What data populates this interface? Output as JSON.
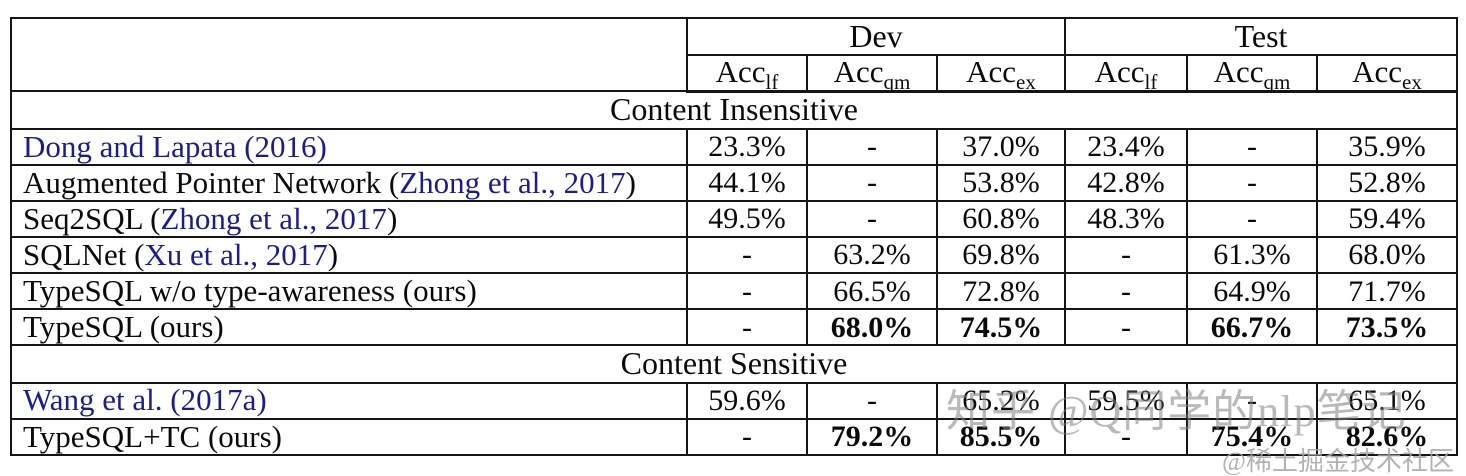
{
  "header": {
    "dev_label": "Dev",
    "test_label": "Test",
    "metric_cols": [
      {
        "base": "Acc",
        "sub": "lf",
        "key": "dev-acc-lf"
      },
      {
        "base": "Acc",
        "sub": "qm",
        "key": "dev-acc-qm"
      },
      {
        "base": "Acc",
        "sub": "ex",
        "key": "dev-acc-ex"
      },
      {
        "base": "Acc",
        "sub": "lf",
        "key": "test-acc-lf"
      },
      {
        "base": "Acc",
        "sub": "qm",
        "key": "test-acc-qm"
      },
      {
        "base": "Acc",
        "sub": "ex",
        "key": "test-acc-ex"
      }
    ]
  },
  "table": {
    "sections": [
      {
        "title": "Content Insensitive",
        "rows": [
          {
            "name_parts": [
              {
                "t": "Dong and Lapata (2016)",
                "link": true
              }
            ],
            "values": [
              "23.3%",
              "-",
              "37.0%",
              "23.4%",
              "-",
              "35.9%"
            ],
            "bold": false
          },
          {
            "name_parts": [
              {
                "t": "Augmented Pointer Network (",
                "link": false
              },
              {
                "t": "Zhong et al., 2017",
                "link": true
              },
              {
                "t": ")",
                "link": false
              }
            ],
            "values": [
              "44.1%",
              "-",
              "53.8%",
              "42.8%",
              "-",
              "52.8%"
            ],
            "bold": false
          },
          {
            "name_parts": [
              {
                "t": "Seq2SQL (",
                "link": false
              },
              {
                "t": "Zhong et al., 2017",
                "link": true
              },
              {
                "t": ")",
                "link": false
              }
            ],
            "values": [
              "49.5%",
              "-",
              "60.8%",
              "48.3%",
              "-",
              "59.4%"
            ],
            "bold": false
          },
          {
            "name_parts": [
              {
                "t": "SQLNet (",
                "link": false
              },
              {
                "t": "Xu et al., 2017",
                "link": true
              },
              {
                "t": ")",
                "link": false
              }
            ],
            "values": [
              "-",
              "63.2%",
              "69.8%",
              "-",
              "61.3%",
              "68.0%"
            ],
            "bold": false
          },
          {
            "name_parts": [
              {
                "t": "TypeSQL w/o type-awareness (ours)",
                "link": false
              }
            ],
            "values": [
              "-",
              "66.5%",
              "72.8%",
              "-",
              "64.9%",
              "71.7%"
            ],
            "bold": false
          },
          {
            "name_parts": [
              {
                "t": "TypeSQL (ours)",
                "link": false
              }
            ],
            "values": [
              "-",
              "68.0%",
              "74.5%",
              "-",
              "66.7%",
              "73.5%"
            ],
            "bold": true
          }
        ]
      },
      {
        "title": "Content Sensitive",
        "rows": [
          {
            "name_parts": [
              {
                "t": "Wang et al. (2017a)",
                "link": true
              }
            ],
            "values": [
              "59.6%",
              "-",
              "65.2%",
              "59.5%",
              "-",
              "65.1%"
            ],
            "bold": false
          },
          {
            "name_parts": [
              {
                "t": "TypeSQL+TC (ours)",
                "link": false
              }
            ],
            "values": [
              "-",
              "79.2%",
              "85.5%",
              "-",
              "75.4%",
              "82.6%"
            ],
            "bold": true
          }
        ]
      }
    ]
  },
  "watermarks": {
    "main": "知乎 @Q同学的nlp笔记",
    "corner": "@稀土掘金技术社区"
  },
  "colors": {
    "link_blue": "#1c1c8f",
    "border": "#141414",
    "watermark_gray": "#808080"
  }
}
